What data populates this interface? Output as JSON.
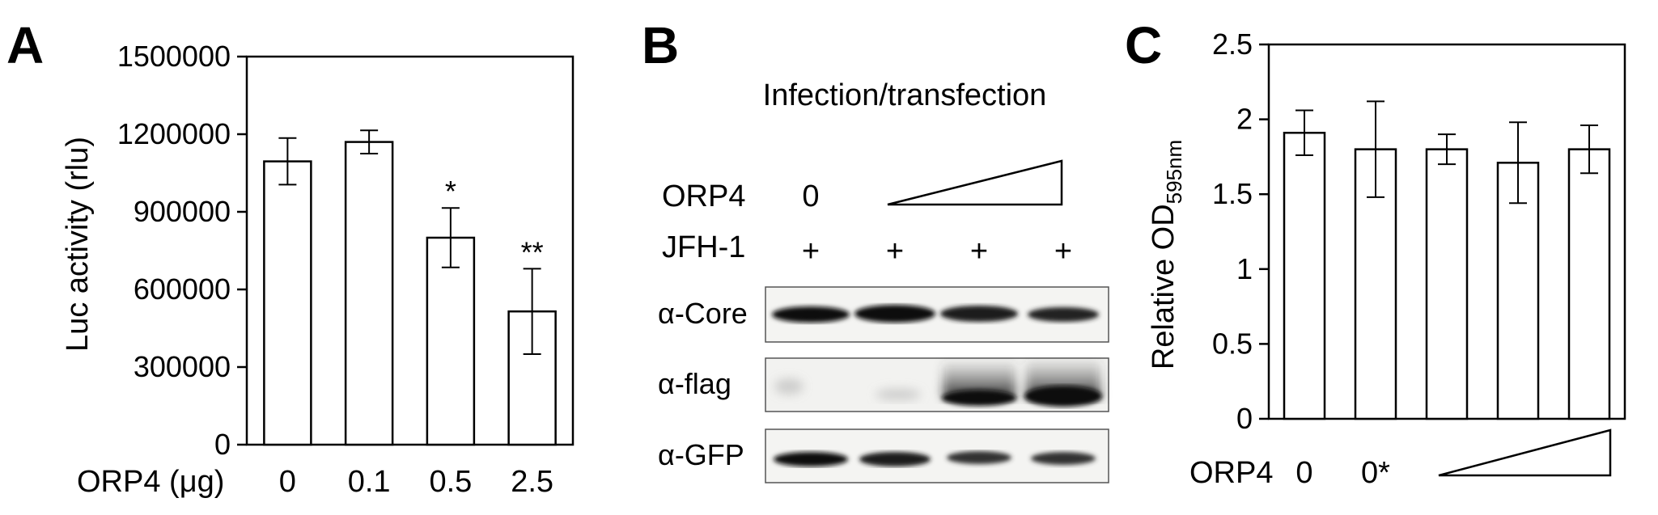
{
  "chart_data": [
    {
      "panel": "A",
      "type": "bar",
      "ylabel": "Luc activity (rlu)",
      "xlabel_prefix": "ORP4 (μg)",
      "categories": [
        "0",
        "0.1",
        "0.5",
        "2.5"
      ],
      "values": [
        1095000,
        1170000,
        800000,
        515000
      ],
      "errors": [
        90000,
        45000,
        115000,
        165000
      ],
      "significance": [
        "",
        "",
        "*",
        "**"
      ],
      "ylim": [
        0,
        1500000
      ],
      "yticks": [
        "0",
        "300000",
        "600000",
        "900000",
        "1200000",
        "1500000"
      ],
      "ytick_values": [
        0,
        300000,
        600000,
        900000,
        1200000,
        1500000
      ],
      "grid": false
    },
    {
      "panel": "C",
      "type": "bar",
      "ylabel_main": "Relative OD",
      "ylabel_sub": "595nm",
      "xlabel_prefix": "ORP4",
      "categories": [
        "0",
        "0*",
        "",
        "",
        ""
      ],
      "values": [
        1.91,
        1.8,
        1.8,
        1.71,
        1.8
      ],
      "errors": [
        0.15,
        0.32,
        0.1,
        0.27,
        0.16
      ],
      "ylim": [
        0,
        2.5
      ],
      "yticks": [
        "0",
        "0.5",
        "1",
        "1.5",
        "2",
        "2.5"
      ],
      "ytick_values": [
        0,
        0.5,
        1,
        1.5,
        2,
        2.5
      ],
      "grid": false
    }
  ],
  "blot": {
    "panel": "B",
    "title": "Infection/transfection",
    "orp4_label": "ORP4",
    "orp4_first": "0",
    "jfh_label": "JFH-1",
    "jfh_marks": [
      "+",
      "+",
      "+",
      "+"
    ],
    "antibodies": [
      "α-Core",
      "α-flag",
      "α-GFP"
    ]
  }
}
